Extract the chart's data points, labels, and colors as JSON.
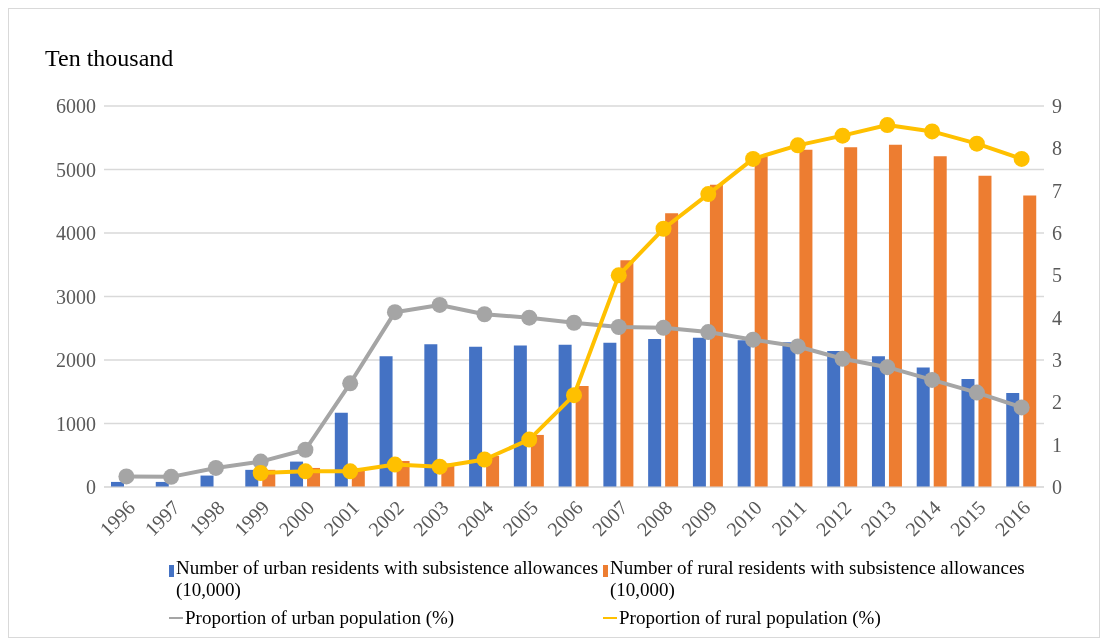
{
  "chart_data": {
    "type": "bar",
    "ylabel": "Ten thousand",
    "categories": [
      "1996",
      "1997",
      "1998",
      "1999",
      "2000",
      "2001",
      "2002",
      "2003",
      "2004",
      "2005",
      "2006",
      "2007",
      "2008",
      "2009",
      "2010",
      "2011",
      "2012",
      "2013",
      "2014",
      "2015",
      "2016"
    ],
    "series": [
      {
        "name": "Number of urban residents with subsistence allowances (10,000)",
        "color": "#4472c4",
        "values": [
          80,
          80,
          180,
          270,
          400,
          1170,
          2060,
          2250,
          2210,
          2230,
          2240,
          2270,
          2330,
          2350,
          2310,
          2280,
          2140,
          2060,
          1880,
          1700,
          1480
        ]
      },
      {
        "name": "Number of rural residents with subsistence allowances (10,000)",
        "color": "#ed7d31",
        "values": [
          null,
          null,
          null,
          270,
          300,
          300,
          410,
          370,
          490,
          820,
          1590,
          3570,
          4310,
          4760,
          5210,
          5310,
          5350,
          5390,
          5210,
          4900,
          4590
        ]
      },
      {
        "name": "Proportion of urban population (%)",
        "type": "line",
        "axis": "y2",
        "color": "#a5a5a5",
        "values": [
          0.25,
          0.24,
          0.45,
          0.6,
          0.88,
          2.45,
          4.13,
          4.3,
          4.08,
          4.0,
          3.88,
          3.78,
          3.76,
          3.66,
          3.48,
          3.32,
          3.03,
          2.83,
          2.53,
          2.23,
          1.88
        ]
      },
      {
        "name": "Proportion of rural population (%)",
        "type": "line",
        "axis": "y2",
        "color": "#ffc000",
        "values": [
          null,
          null,
          null,
          0.33,
          0.37,
          0.37,
          0.53,
          0.48,
          0.65,
          1.12,
          2.17,
          5.0,
          6.1,
          6.92,
          7.75,
          8.07,
          8.3,
          8.55,
          8.4,
          8.11,
          7.75
        ]
      }
    ],
    "ylim": [
      0,
      6000
    ],
    "yticks": [
      0,
      1000,
      2000,
      3000,
      4000,
      5000,
      6000
    ],
    "y2lim": [
      0,
      9
    ],
    "y2ticks": [
      0,
      1,
      2,
      3,
      4,
      5,
      6,
      7,
      8,
      9
    ],
    "grid": "y",
    "legend": "bottom",
    "marker": "circle",
    "line_style": "solid"
  }
}
